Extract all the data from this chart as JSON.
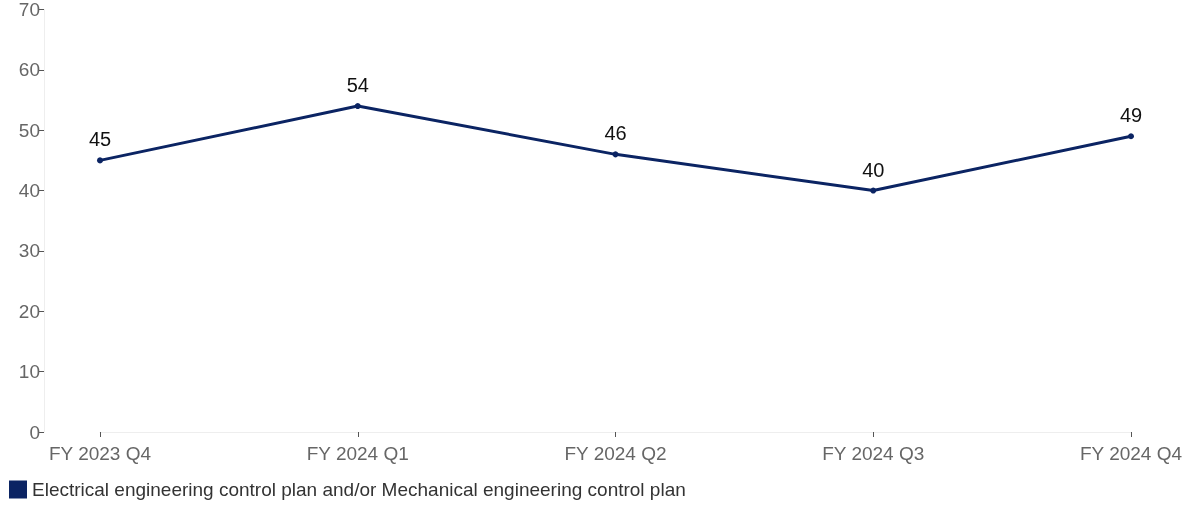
{
  "chart_data": {
    "type": "line",
    "categories": [
      "FY 2023 Q4",
      "FY 2024 Q1",
      "FY 2024 Q2",
      "FY 2024 Q3",
      "FY 2024 Q4"
    ],
    "series": [
      {
        "name": "Electrical engineering control plan and/or Mechanical engineering control plan",
        "color": "#0b2463",
        "values": [
          45,
          54,
          46,
          40,
          49
        ]
      }
    ],
    "ylim": [
      0,
      70
    ],
    "yticks": [
      0,
      10,
      20,
      30,
      40,
      50,
      60,
      70
    ],
    "data_labels": true,
    "marker": "circle",
    "line_style": "solid",
    "grid": false,
    "legend": "bottom left"
  }
}
